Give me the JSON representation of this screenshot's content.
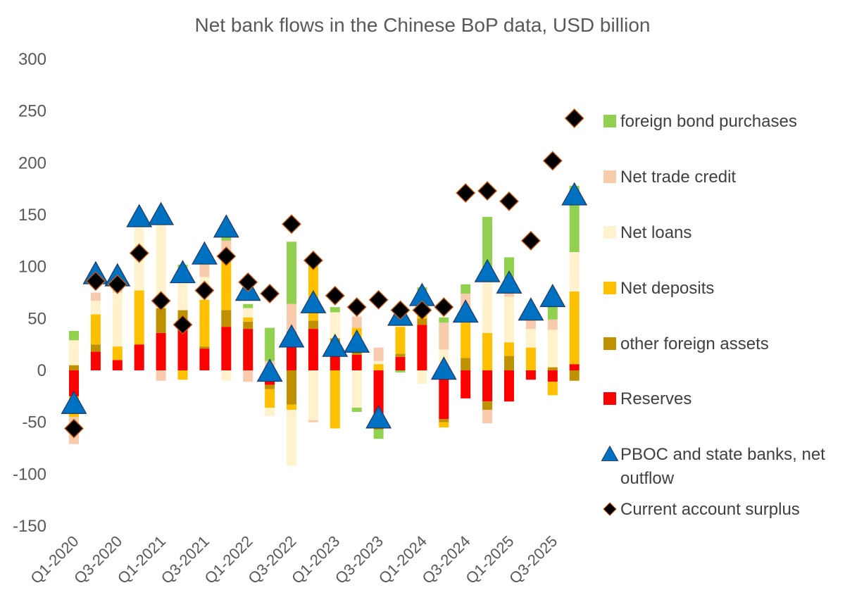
{
  "chart_data": {
    "type": "bar",
    "stacked": true,
    "title": "Net bank flows in the Chinese BoP data, USD billion",
    "xlabel": "",
    "ylabel": "",
    "ylim": [
      -150,
      300
    ],
    "yticks": [
      300,
      250,
      200,
      150,
      100,
      50,
      0,
      -50,
      -100,
      -150
    ],
    "grid": false,
    "legend_position": "right",
    "categories": [
      "Q1-2020",
      "Q2-2020",
      "Q3-2020",
      "Q4-2020",
      "Q1-2021",
      "Q2-2021",
      "Q3-2021",
      "Q4-2021",
      "Q1-2022",
      "Q2-2022",
      "Q3-2022",
      "Q4-2022",
      "Q1-2023",
      "Q2-2023",
      "Q3-2023",
      "Q4-2023",
      "Q1-2024",
      "Q2-2024",
      "Q3-2024",
      "Q4-2024",
      "Q1-2025",
      "Q2-2025",
      "Q3-2025",
      "Q4-2025"
    ],
    "tick_labels": [
      "Q1-2020",
      "Q3-2020",
      "Q1-2021",
      "Q3-2021",
      "Q1-2022",
      "Q3-2022",
      "Q1-2023",
      "Q3-2023",
      "Q1-2024",
      "Q3-2024",
      "Q1-2025",
      "Q3-2025"
    ],
    "series": [
      {
        "name": "Reserves",
        "kind": "bar",
        "color": "#ff0000",
        "values": [
          -25,
          18,
          10,
          25,
          36,
          40,
          21,
          42,
          40,
          -14,
          37,
          40,
          15,
          15,
          -52,
          13,
          44,
          -47,
          -27,
          -30,
          -30,
          -9,
          -11,
          6
        ]
      },
      {
        "name": "other foreign assets",
        "kind": "bar",
        "color": "#bf9000",
        "values": [
          5,
          7,
          0,
          0,
          24,
          18,
          2,
          16,
          7,
          -4,
          -33,
          8,
          16,
          6,
          -5,
          3,
          6,
          -3,
          12,
          -8,
          14,
          0,
          3,
          -10
        ]
      },
      {
        "name": "Net deposits",
        "kind": "bar",
        "color": "#ffc000",
        "values": [
          -20,
          29,
          13,
          52,
          0,
          -9,
          45,
          48,
          4,
          -18,
          -5,
          52,
          -56,
          20,
          6,
          26,
          4,
          -5,
          34,
          36,
          13,
          22,
          -13,
          70
        ]
      },
      {
        "name": "Net loans",
        "kind": "bar",
        "color": "#fff2cc",
        "values": [
          24,
          13,
          52,
          62,
          80,
          28,
          22,
          -10,
          9,
          -8,
          -54,
          -48,
          25,
          -36,
          3,
          3,
          -13,
          20,
          12,
          50,
          44,
          18,
          36,
          38
        ]
      },
      {
        "name": "Net trade credit",
        "kind": "bar",
        "color": "#f8cbad",
        "values": [
          -26,
          8,
          2,
          5,
          -10,
          12,
          12,
          19,
          -11,
          9,
          27,
          -2,
          0,
          11,
          13,
          5,
          20,
          26,
          16,
          -13,
          6,
          10,
          10,
          0
        ]
      },
      {
        "name": "foreign bond purchases",
        "kind": "bar",
        "color": "#92d050",
        "values": [
          9,
          0,
          2,
          0,
          4,
          4,
          3,
          6,
          4,
          32,
          60,
          3,
          5,
          -4,
          -9,
          -2,
          6,
          5,
          9,
          62,
          32,
          11,
          27,
          64
        ]
      },
      {
        "name": "PBOC and state banks, net outflow",
        "kind": "marker",
        "marker": "triangle",
        "color": "#0070c0",
        "values": [
          -33,
          92,
          90,
          147,
          149,
          93,
          111,
          137,
          76,
          -2,
          31,
          64,
          22,
          26,
          -47,
          52,
          71,
          0,
          55,
          94,
          83,
          57,
          70,
          168
        ]
      },
      {
        "name": "Current account surplus",
        "kind": "marker",
        "marker": "diamond",
        "color": "#000000",
        "values": [
          -56,
          86,
          83,
          113,
          67,
          44,
          77,
          110,
          85,
          74,
          141,
          106,
          72,
          61,
          68,
          58,
          58,
          61,
          171,
          173,
          163,
          125,
          202,
          243
        ]
      }
    ],
    "legend_order": [
      "foreign bond purchases",
      "Net trade credit",
      "Net loans",
      "Net deposits",
      "other foreign assets",
      "Reserves",
      "PBOC and state banks, net outflow",
      "Current account surplus"
    ],
    "legend_labels": {
      "foreign bond purchases": [
        "foreign bond purchases"
      ],
      "Net trade credit": [
        "Net trade credit"
      ],
      "Net loans": [
        "Net loans"
      ],
      "Net deposits": [
        "Net deposits"
      ],
      "other foreign assets": [
        "other foreign assets"
      ],
      "Reserves": [
        "Reserves"
      ],
      "PBOC and state banks, net outflow": [
        "PBOC and state banks, net",
        "outflow"
      ],
      "Current account surplus": [
        "Current account surplus"
      ]
    }
  }
}
